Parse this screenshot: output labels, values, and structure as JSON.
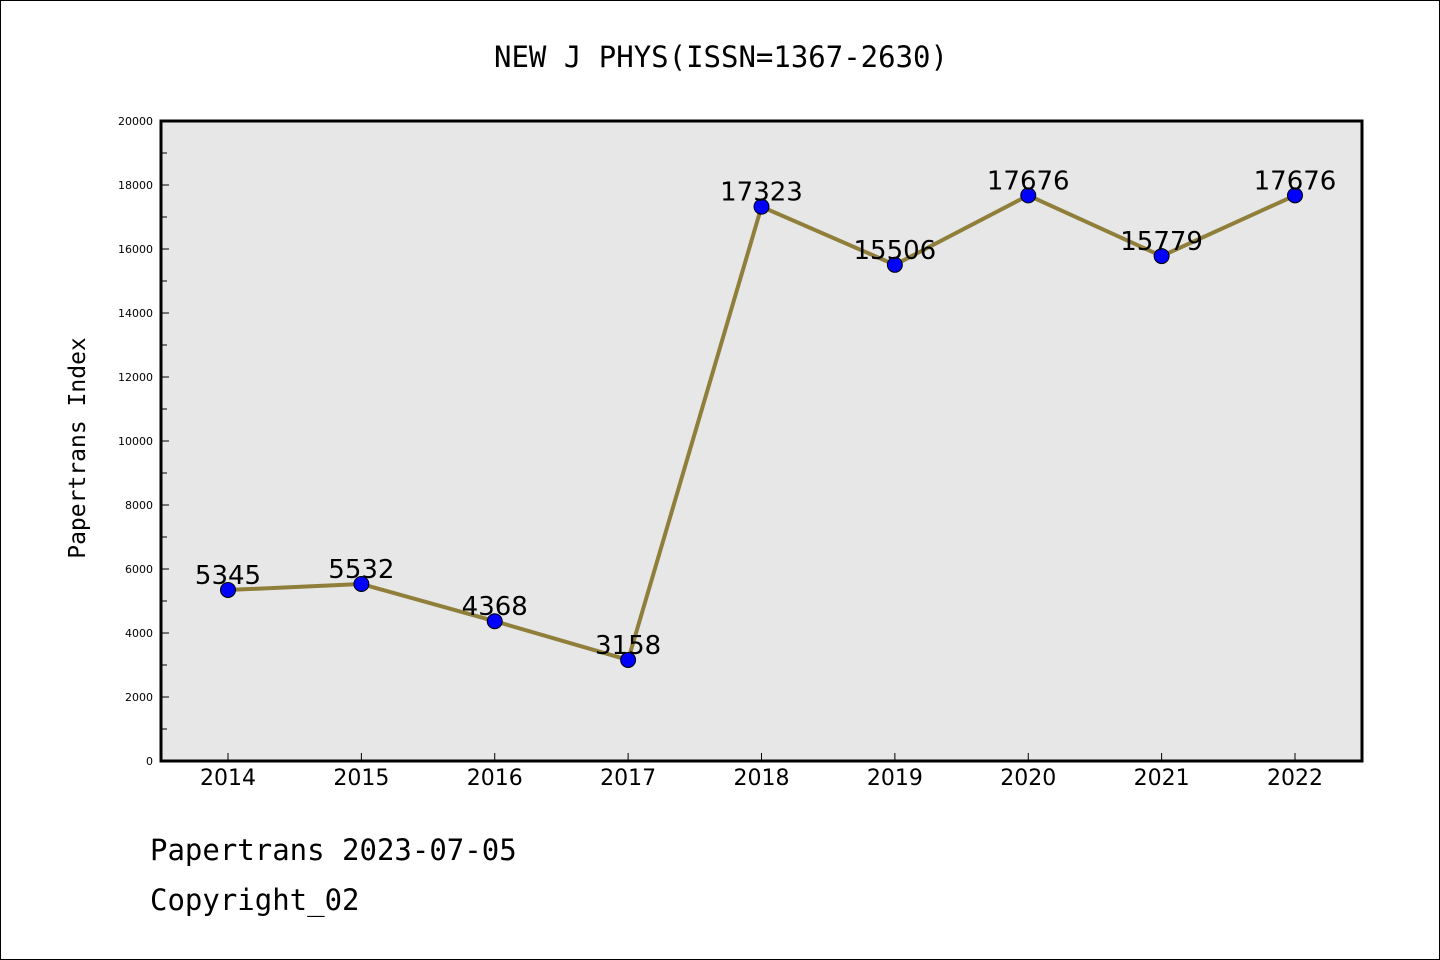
{
  "chart_data": {
    "type": "line",
    "title": "NEW J PHYS(ISSN=1367-2630)",
    "xlabel": "",
    "ylabel": "Papertrans Index",
    "categories": [
      "2014",
      "2015",
      "2016",
      "2017",
      "2018",
      "2019",
      "2020",
      "2021",
      "2022"
    ],
    "series": [
      {
        "values": [
          5345,
          5532,
          4368,
          3158,
          17323,
          15506,
          17676,
          15779,
          17676
        ]
      }
    ],
    "data_labels": [
      "5345",
      "5532",
      "4368",
      "3158",
      "17323",
      "15506",
      "17676",
      "15779",
      "17676"
    ],
    "ylim": [
      0,
      20000
    ],
    "yticks": [
      0,
      2000,
      4000,
      6000,
      8000,
      10000,
      12000,
      14000,
      16000,
      18000,
      20000
    ],
    "ytick_labels": [
      "0",
      "2000",
      "4000",
      "6000",
      "8000",
      "10000",
      "12000",
      "14000",
      "16000",
      "18000",
      "20000"
    ],
    "grid": false,
    "legend": "none",
    "colors": {
      "plot_background": "#e7e7e7",
      "line": "#8f7f3a",
      "marker_fill": "#0000ff",
      "marker_edge": "#000000",
      "axes": "#000000"
    }
  },
  "footer": {
    "line1": "Papertrans 2023-07-05",
    "line2": "Copyright_02"
  }
}
